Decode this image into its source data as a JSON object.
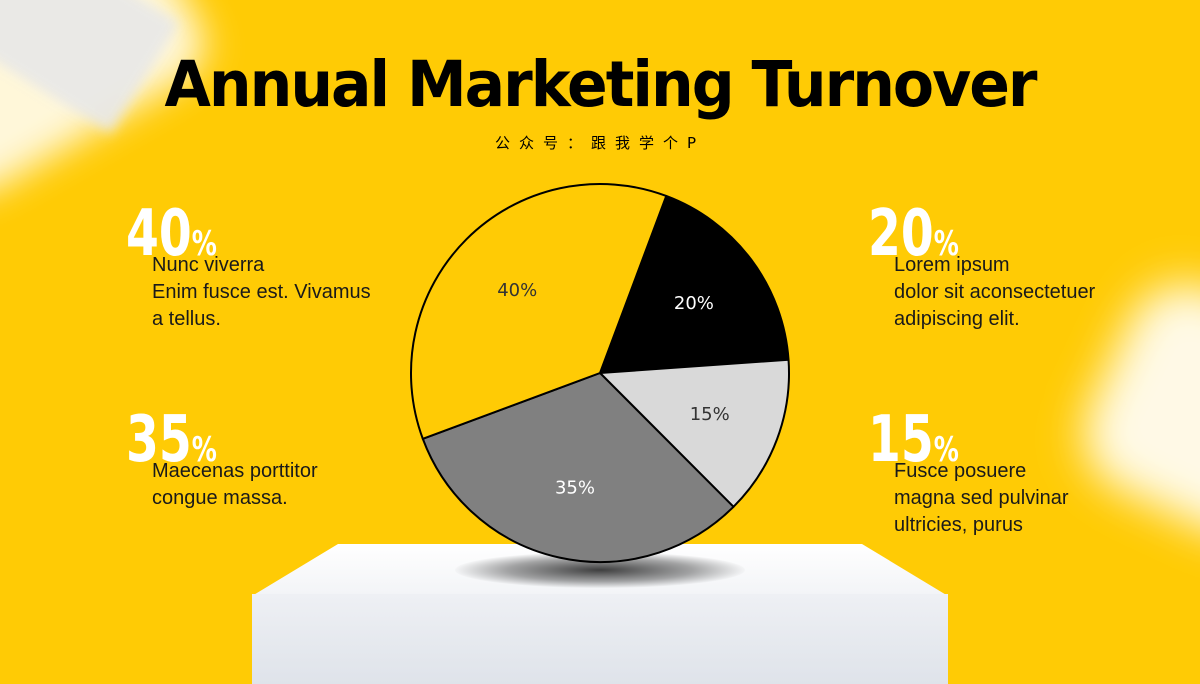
{
  "title": "Annual Marketing Turnover",
  "subtitle": "公众号：跟我学个P",
  "stats": {
    "s40": {
      "value": "40",
      "unit": "%",
      "lines": [
        "Nunc viverra",
        "Enim fusce est. Vivamus",
        "a tellus."
      ]
    },
    "s35": {
      "value": "35",
      "unit": "%",
      "lines": [
        "Maecenas porttitor",
        "congue massa."
      ]
    },
    "s20": {
      "value": "20",
      "unit": "%",
      "lines": [
        "Lorem ipsum",
        "dolor sit aconsectetuer",
        "adipiscing elit."
      ]
    },
    "s15": {
      "value": "15",
      "unit": "%",
      "lines": [
        "Fusce posuere",
        "magna sed pulvinar",
        "ultricies, purus"
      ]
    }
  },
  "chart_data": {
    "type": "pie",
    "slices": [
      {
        "label": "20%",
        "value": 20,
        "color": "#000000",
        "text_color": "#ffffff"
      },
      {
        "label": "15%",
        "value": 15,
        "color": "#D9D9D9",
        "text_color": "#333333"
      },
      {
        "label": "35%",
        "value": 35,
        "color": "#808080",
        "text_color": "#ffffff"
      },
      {
        "label": "40%",
        "value": 40,
        "color": "#FFCB05",
        "text_color": "#333333"
      }
    ]
  }
}
